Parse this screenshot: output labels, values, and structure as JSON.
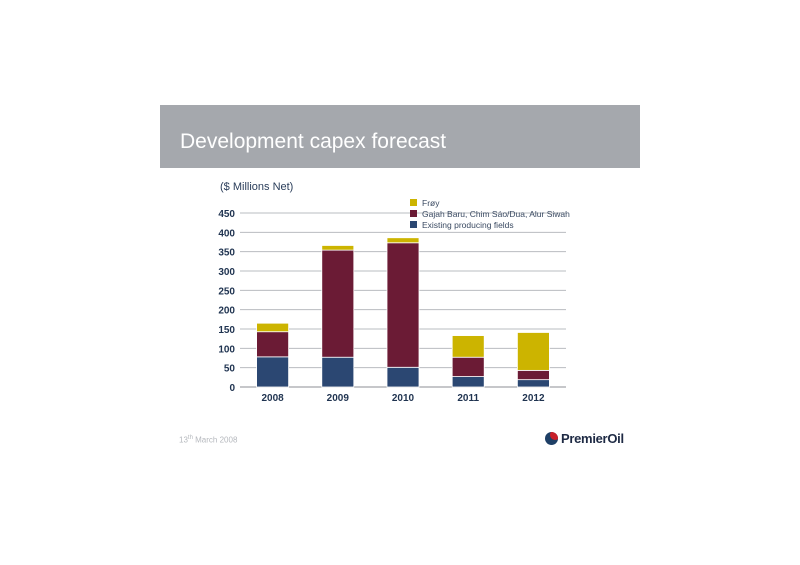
{
  "slide": {
    "title": "Development capex forecast",
    "footer_date_day": "13",
    "footer_date_suffix": "th",
    "footer_date_rest": " March 2008",
    "logo_text": "PremierOil"
  },
  "chart_data": {
    "type": "bar",
    "stacked": true,
    "ylabel": "($ Millions Net)",
    "categories": [
      "2008",
      "2009",
      "2010",
      "2011",
      "2012"
    ],
    "ylim": [
      0,
      450
    ],
    "yticks": [
      0,
      50,
      100,
      150,
      200,
      250,
      300,
      350,
      400,
      450
    ],
    "grid": true,
    "legend_position": "top-right",
    "series": [
      {
        "name": "Existing producing fields",
        "color": "#2b4772",
        "values": [
          78,
          77,
          51,
          27,
          19
        ]
      },
      {
        "name": "Gajah Baru, Chim Sáo/Dua, Alur Siwah",
        "color": "#6b1b35",
        "values": [
          65,
          277,
          322,
          50,
          24
        ]
      },
      {
        "name": "Frøy",
        "color": "#ccb400",
        "values": [
          22,
          12,
          13,
          56,
          98
        ]
      }
    ]
  }
}
